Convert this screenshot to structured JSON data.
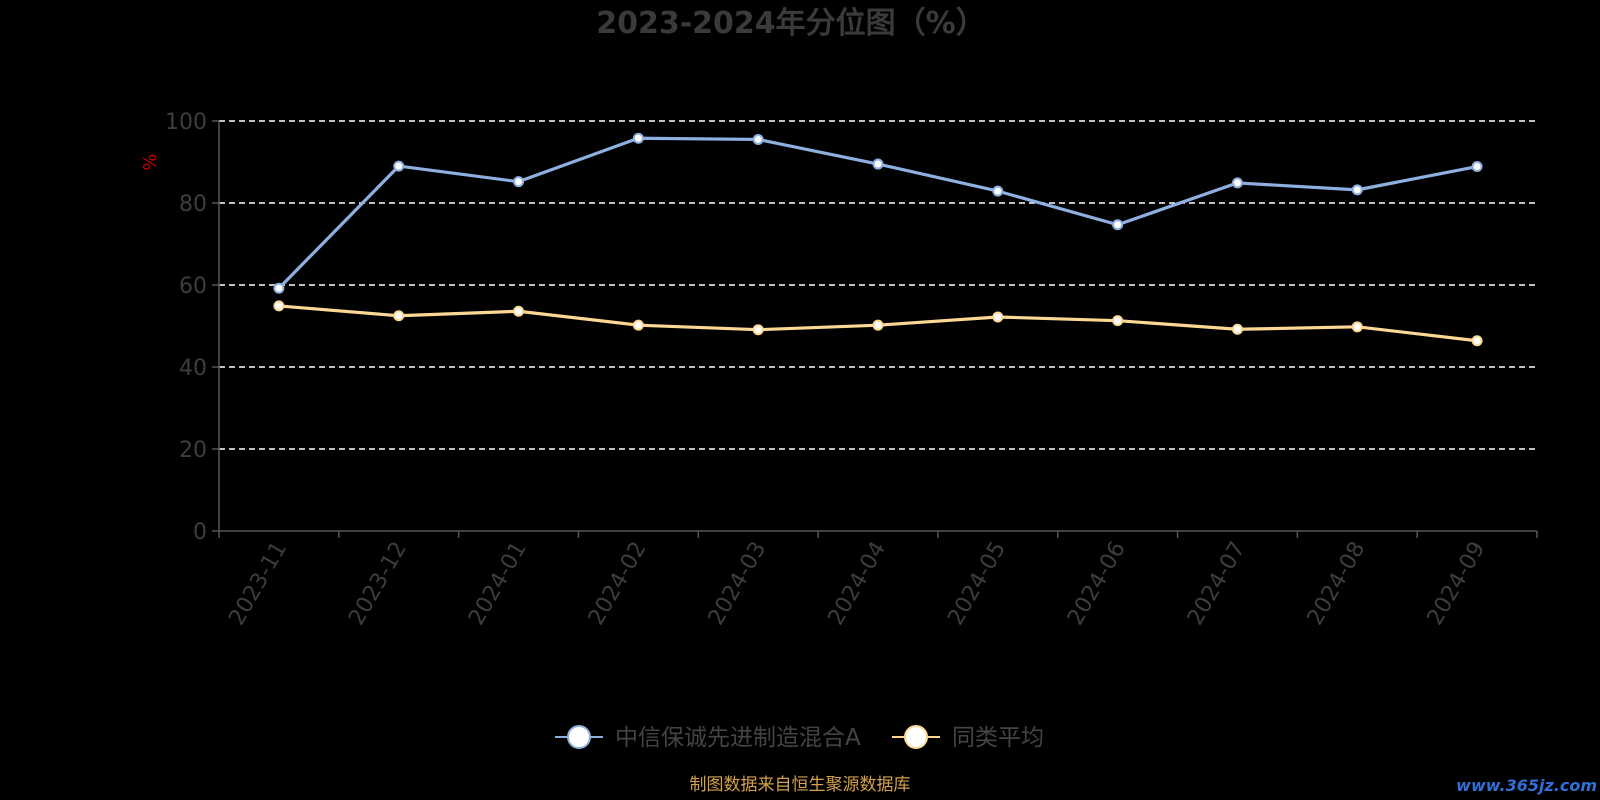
{
  "colors": {
    "background": "#000000",
    "fund_line": "#8eb0e0",
    "avg_line": "#fcd894",
    "grid": "#ffffff",
    "axis": "#555555",
    "title": "#3a3a3a",
    "ylabel": "#cc0000",
    "source": "#d4a04c",
    "watermark": "#2f6fd6"
  },
  "footer": {
    "source": "制图数据来自恒生聚源数据库",
    "watermark": "www.365jz.com"
  },
  "chart_data": {
    "type": "line",
    "title": "2023-2024年分位图（%）",
    "xlabel": "",
    "ylabel": "%",
    "ylim": [
      0,
      100
    ],
    "yticks": [
      0,
      20,
      40,
      60,
      80,
      100
    ],
    "grid": true,
    "legend_position": "bottom-center",
    "categories": [
      "2023-11",
      "2023-12",
      "2024-01",
      "2024-02",
      "2024-03",
      "2024-04",
      "2024-05",
      "2024-06",
      "2024-07",
      "2024-08",
      "2024-09"
    ],
    "series": [
      {
        "name": "中信保诚先进制造混合A",
        "color": "#8eb0e0",
        "values": [
          59.2,
          89.0,
          85.2,
          95.8,
          95.5,
          89.5,
          82.9,
          74.7,
          84.9,
          83.2,
          88.9
        ]
      },
      {
        "name": "同类平均",
        "color": "#fcd894",
        "values": [
          54.9,
          52.5,
          53.6,
          50.2,
          49.1,
          50.2,
          52.2,
          51.3,
          49.2,
          49.8,
          46.4
        ]
      }
    ]
  }
}
